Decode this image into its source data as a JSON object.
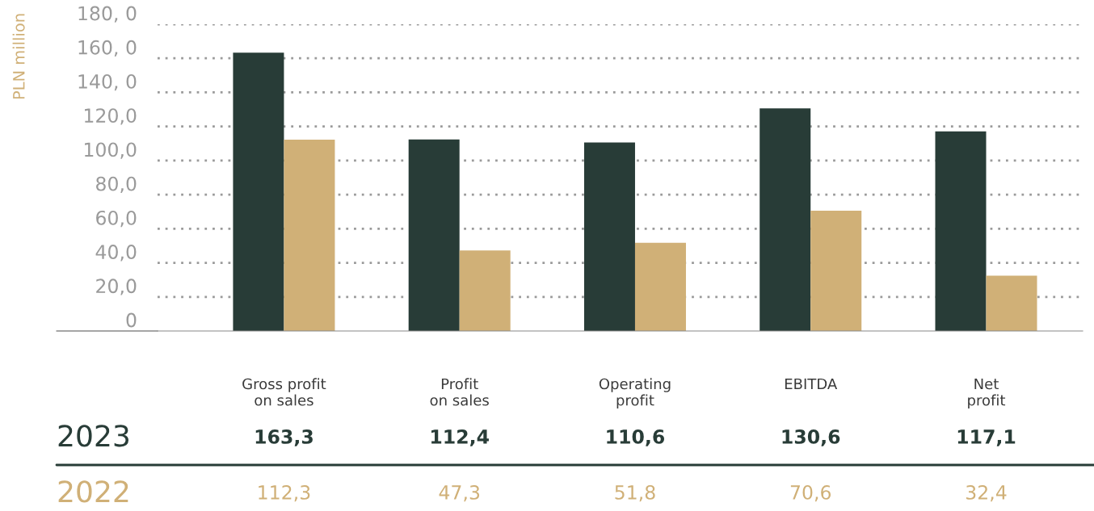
{
  "chart_data": {
    "type": "bar",
    "ylabel": "PLN million",
    "categories": [
      "Gross profit\non sales",
      "Profit\non sales",
      "Operating\nprofit",
      "EBITDA",
      "Net\nprofit"
    ],
    "series": [
      {
        "name": "2023",
        "color": "#283c37",
        "values": [
          163.3,
          112.4,
          110.6,
          130.6,
          117.1
        ],
        "value_labels": [
          "163,3",
          "112,4",
          "110,6",
          "130,6",
          "117,1"
        ]
      },
      {
        "name": "2022",
        "color": "#d0b077",
        "values": [
          112.3,
          47.3,
          51.8,
          70.6,
          32.4
        ],
        "value_labels": [
          "112,3",
          "47,3",
          "51,8",
          "70,6",
          "32,4"
        ]
      }
    ],
    "ylim": [
      0,
      180
    ],
    "yticks": [
      0,
      {
        "value": 20,
        "label": "20,0"
      },
      {
        "value": 40,
        "label": "40,0"
      },
      {
        "value": 60,
        "label": "60,0"
      },
      {
        "value": 80,
        "label": "80,0"
      },
      {
        "value": 100,
        "label": "100,0"
      },
      {
        "value": 120,
        "label": "120,0"
      },
      {
        "value": 140,
        "label": "140, 0"
      },
      {
        "value": 160,
        "label": "160, 0"
      },
      {
        "value": 180,
        "label": "180, 0"
      }
    ],
    "grid": "y"
  }
}
